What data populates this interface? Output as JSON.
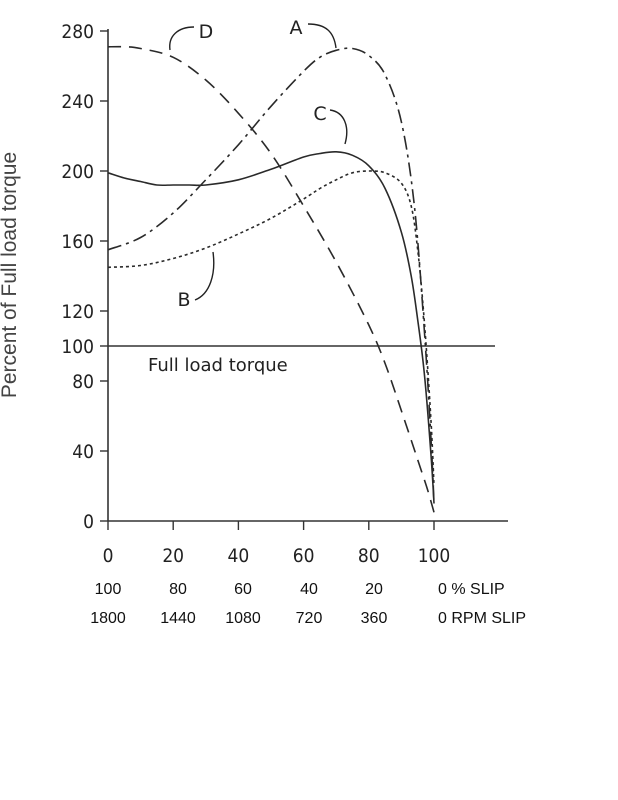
{
  "chart_data": {
    "type": "line",
    "ylabel": "Percent of Full load torque",
    "xlim": [
      0,
      100
    ],
    "ylim": [
      0,
      280
    ],
    "x_ticks": [
      0,
      20,
      40,
      60,
      80,
      100
    ],
    "y_ticks": [
      0,
      40,
      80,
      100,
      120,
      160,
      200,
      240,
      280
    ],
    "series": [
      {
        "name": "A",
        "style": "dash-dot",
        "x": [
          0,
          10,
          20,
          30,
          40,
          50,
          60,
          65,
          70,
          75,
          80,
          85,
          90,
          94,
          97,
          99,
          100
        ],
        "y": [
          155,
          162,
          176,
          195,
          215,
          237,
          257,
          265,
          269,
          270,
          266,
          255,
          228,
          180,
          110,
          50,
          10
        ]
      },
      {
        "name": "B",
        "style": "dotted",
        "x": [
          0,
          10,
          20,
          30,
          40,
          50,
          60,
          65,
          70,
          75,
          80,
          85,
          90,
          93,
          95,
          97,
          99,
          100
        ],
        "y": [
          145,
          146,
          150,
          156,
          164,
          173,
          184,
          190,
          195,
          199,
          200,
          199,
          193,
          180,
          155,
          115,
          60,
          20
        ]
      },
      {
        "name": "C",
        "style": "solid",
        "x": [
          0,
          5,
          10,
          15,
          20,
          25,
          30,
          40,
          50,
          60,
          65,
          70,
          75,
          80,
          85,
          90,
          93,
          95,
          97,
          99,
          100
        ],
        "y": [
          199,
          196,
          194,
          192,
          192,
          192,
          192,
          195,
          201,
          208,
          210,
          211,
          209,
          203,
          190,
          165,
          140,
          115,
          85,
          40,
          10
        ]
      },
      {
        "name": "D",
        "style": "dashed",
        "x": [
          0,
          5,
          10,
          20,
          30,
          40,
          50,
          60,
          70,
          80,
          85,
          90,
          95,
          98,
          100
        ],
        "y": [
          271,
          271,
          270,
          265,
          252,
          233,
          210,
          180,
          148,
          112,
          90,
          63,
          35,
          18,
          5
        ]
      }
    ],
    "reference_line": {
      "y": 100,
      "label": "Full load torque"
    },
    "grid": false
  },
  "slip_axis": {
    "percent": [
      "100",
      "80",
      "60",
      "40",
      "20",
      "0 % SLIP"
    ],
    "rpm": [
      "1800",
      "1440",
      "1080",
      "720",
      "360",
      "0 RPM SLIP"
    ]
  }
}
